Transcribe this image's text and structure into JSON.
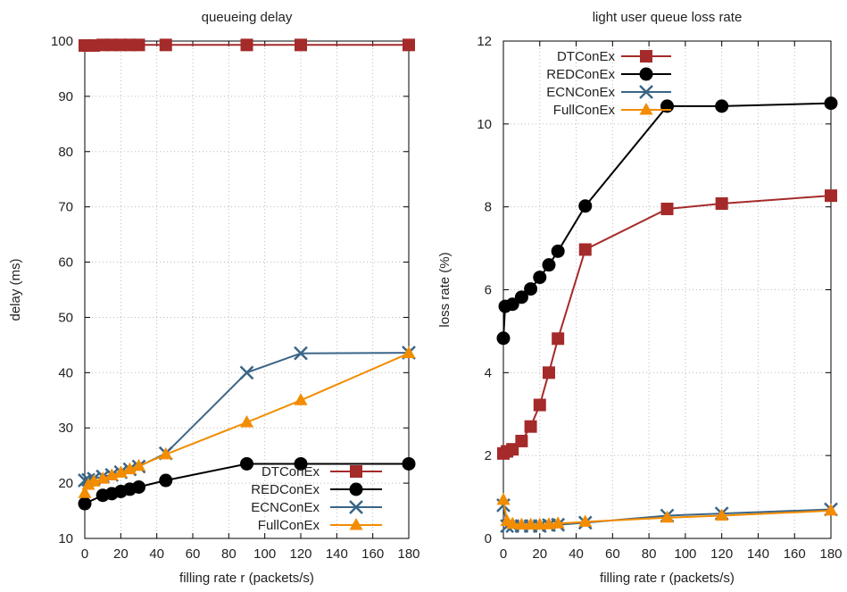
{
  "chart_data": [
    {
      "type": "line",
      "title": "queueing delay",
      "xlabel": "filling rate r (packets/s)",
      "ylabel": "delay (ms)",
      "xlim": [
        0,
        180
      ],
      "ylim": [
        10,
        100
      ],
      "xticks": [
        0,
        20,
        40,
        60,
        80,
        100,
        120,
        140,
        160,
        180
      ],
      "yticks": [
        10,
        20,
        30,
        40,
        50,
        60,
        70,
        80,
        90,
        100
      ],
      "grid": true,
      "legend_position": "bottom-right",
      "series": [
        {
          "name": "DTConEx",
          "color": "#a52a2a",
          "marker": "square",
          "x": [
            0,
            2,
            5,
            10,
            15,
            20,
            25,
            30,
            45,
            90,
            120,
            180
          ],
          "y": [
            99.2,
            99.2,
            99.2,
            99.3,
            99.3,
            99.3,
            99.3,
            99.3,
            99.3,
            99.3,
            99.3,
            99.3
          ]
        },
        {
          "name": "REDConEx",
          "color": "#000000",
          "marker": "circle",
          "x": [
            0,
            10,
            15,
            20,
            25,
            30,
            45,
            90,
            120,
            180
          ],
          "y": [
            16.3,
            17.8,
            18.1,
            18.5,
            18.9,
            19.3,
            20.5,
            23.5,
            23.5,
            23.5
          ]
        },
        {
          "name": "ECNConEx",
          "color": "#3a6587",
          "marker": "x",
          "x": [
            0,
            2,
            5,
            10,
            15,
            20,
            25,
            30,
            45,
            90,
            120,
            180
          ],
          "y": [
            20.5,
            20.6,
            20.8,
            21.2,
            21.5,
            22.0,
            22.5,
            23.0,
            25.4,
            40.0,
            43.5,
            43.6
          ]
        },
        {
          "name": "FullConEx",
          "color": "#f28c00",
          "marker": "triangle",
          "x": [
            0,
            2,
            5,
            10,
            15,
            20,
            25,
            30,
            45,
            90,
            120,
            180
          ],
          "y": [
            18.2,
            19.7,
            20.3,
            20.8,
            21.4,
            21.9,
            22.5,
            23.1,
            25.2,
            31.0,
            35.0,
            43.5
          ]
        }
      ]
    },
    {
      "type": "line",
      "title": "light user queue loss rate",
      "xlabel": "filling rate r (packets/s)",
      "ylabel": "loss rate (%)",
      "xlim": [
        0,
        180
      ],
      "ylim": [
        0,
        12
      ],
      "xticks": [
        0,
        20,
        40,
        60,
        80,
        100,
        120,
        140,
        160,
        180
      ],
      "yticks": [
        0,
        2,
        4,
        6,
        8,
        10,
        12
      ],
      "grid": true,
      "legend_position": "top-left",
      "series": [
        {
          "name": "DTConEx",
          "color": "#a52a2a",
          "marker": "square",
          "x": [
            0,
            2,
            5,
            10,
            15,
            20,
            25,
            30,
            45,
            90,
            120,
            180
          ],
          "y": [
            2.05,
            2.1,
            2.15,
            2.35,
            2.7,
            3.22,
            4.0,
            4.82,
            6.97,
            7.95,
            8.08,
            8.27
          ]
        },
        {
          "name": "REDConEx",
          "color": "#000000",
          "marker": "circle",
          "x": [
            0,
            1,
            5,
            10,
            15,
            20,
            25,
            30,
            45,
            90,
            120,
            180
          ],
          "y": [
            4.83,
            5.6,
            5.65,
            5.82,
            6.02,
            6.3,
            6.6,
            6.93,
            8.02,
            10.43,
            10.43,
            10.5
          ]
        },
        {
          "name": "ECNConEx",
          "color": "#3a6587",
          "marker": "x",
          "x": [
            0,
            2,
            5,
            10,
            15,
            20,
            25,
            30,
            45,
            90,
            120,
            180
          ],
          "y": [
            0.8,
            0.3,
            0.3,
            0.3,
            0.3,
            0.3,
            0.32,
            0.33,
            0.38,
            0.55,
            0.6,
            0.7
          ]
        },
        {
          "name": "FullConEx",
          "color": "#f28c00",
          "marker": "triangle",
          "x": [
            0,
            2,
            5,
            10,
            15,
            20,
            25,
            30,
            45,
            90,
            120,
            180
          ],
          "y": [
            0.93,
            0.42,
            0.35,
            0.33,
            0.33,
            0.33,
            0.34,
            0.36,
            0.4,
            0.5,
            0.55,
            0.67
          ]
        }
      ]
    }
  ]
}
